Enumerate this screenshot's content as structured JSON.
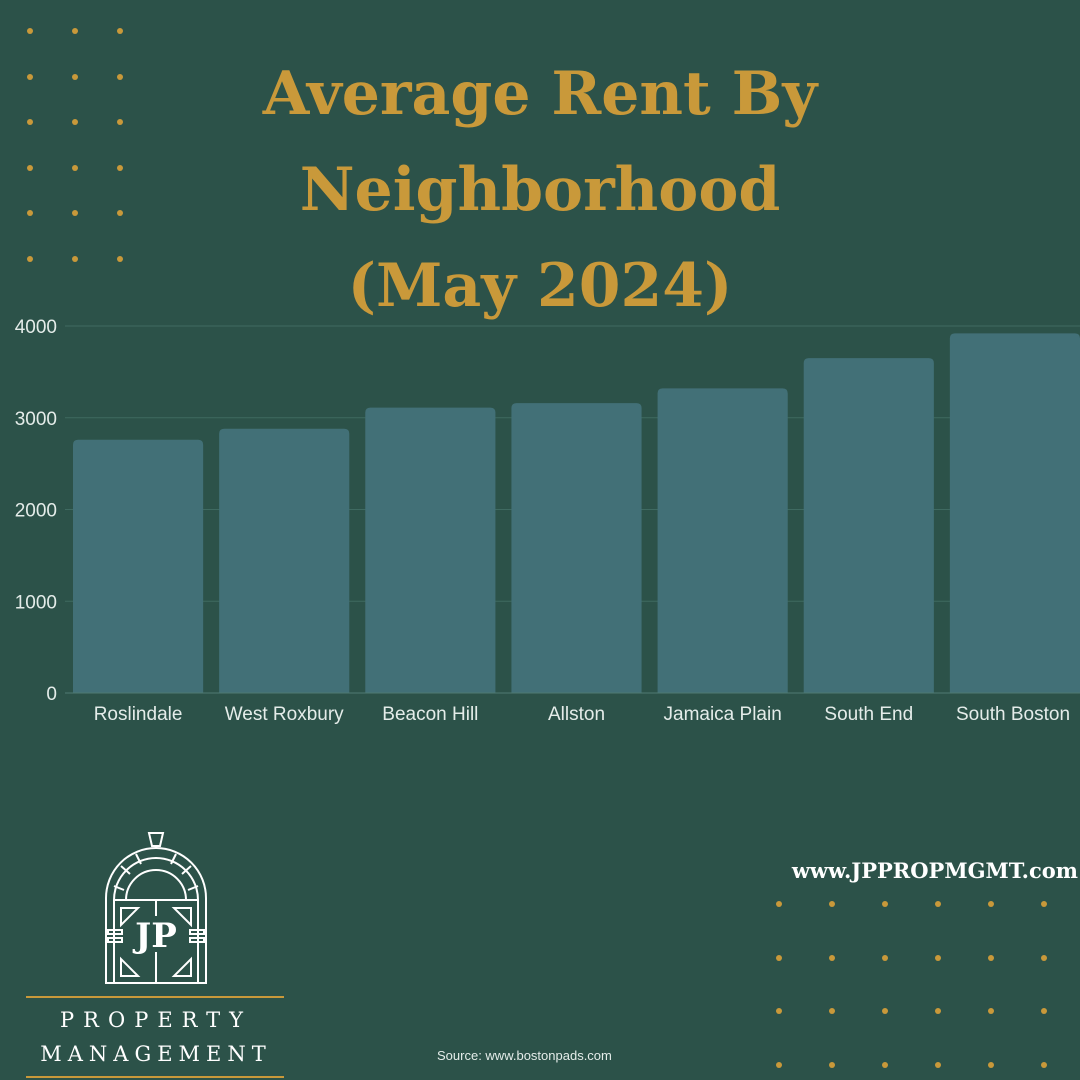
{
  "title_lines": [
    "Average Rent By",
    "Neighborhood",
    "(May 2024)"
  ],
  "website": "www.JPPROPMGMT.com",
  "source": "Source: www.bostonpads.com",
  "logo": {
    "monogram": "JP",
    "line1": "PROPERTY",
    "line2": "MANAGEMENT"
  },
  "colors": {
    "background": "#2c5249",
    "accent_gold": "#c9993a",
    "bar": "#427077",
    "text_light": "#e4ece9"
  },
  "chart_data": {
    "type": "bar",
    "title": "Average Rent By Neighborhood (May 2024)",
    "categories": [
      "Roslindale",
      "West Roxbury",
      "Beacon Hill",
      "Allston",
      "Jamaica Plain",
      "South End",
      "South Boston"
    ],
    "values": [
      2760,
      2880,
      3110,
      3160,
      3320,
      3650,
      3920
    ],
    "ylim": [
      0,
      4000
    ],
    "yticks": [
      0,
      1000,
      2000,
      3000,
      4000
    ],
    "grid": true,
    "legend": "none"
  }
}
